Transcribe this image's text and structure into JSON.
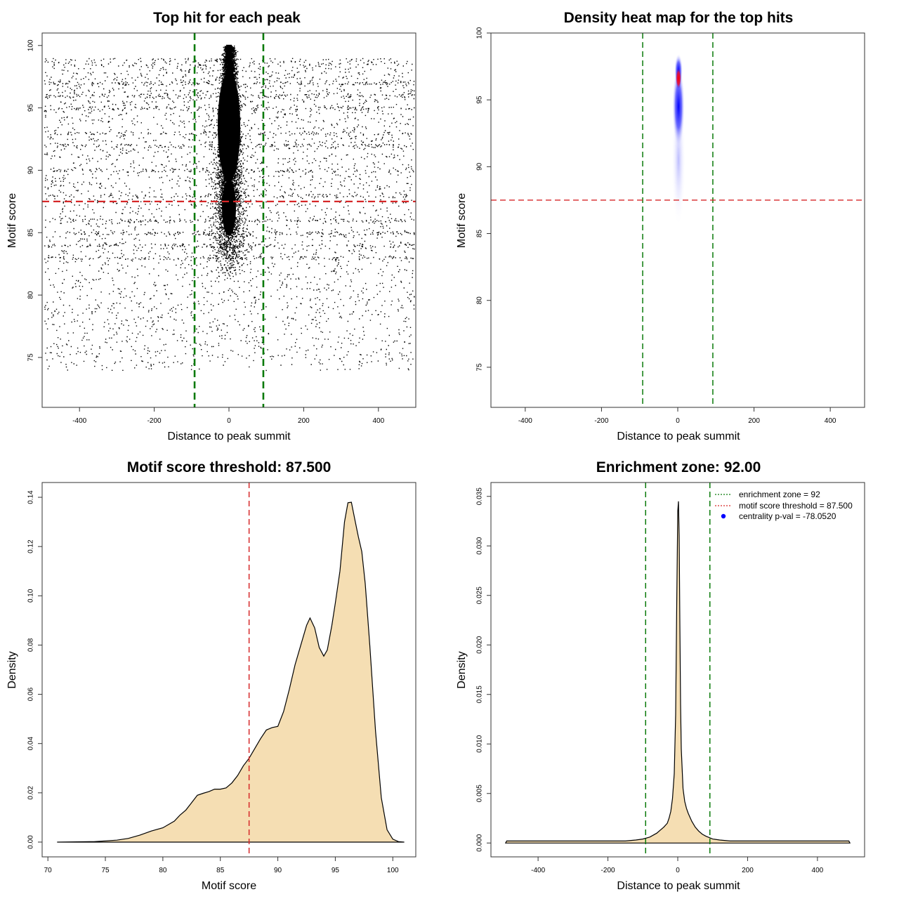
{
  "chart_data": [
    {
      "type": "scatter",
      "title": "Top hit for each peak",
      "xlabel": "Distance to peak summit",
      "ylabel": "Motif score",
      "xlim": [
        -500,
        500
      ],
      "ylim": [
        71,
        101
      ],
      "xticks": [
        "-400",
        "-200",
        "0",
        "200",
        "400"
      ],
      "yticks": [
        "75",
        "80",
        "85",
        "90",
        "95",
        "100"
      ],
      "vlines": [
        -92,
        92
      ],
      "hline": 87.5,
      "vline_color": "#0a7a0a",
      "hline_color": "#d62728",
      "point_color": "#000000",
      "description_series": {
        "background": {
          "x_range": [
            -495,
            495
          ],
          "y_range": [
            73.7,
            99
          ],
          "approx_points": 9000
        },
        "center": {
          "x_center": 0,
          "x_spread": 35,
          "y_range": [
            81.5,
            100
          ],
          "approx_points": 8000
        }
      }
    },
    {
      "type": "heatmap",
      "title": "Density heat map for the top hits",
      "xlabel": "Distance to peak summit",
      "ylabel": "Motif score",
      "xlim": [
        -490,
        490
      ],
      "ylim": [
        72,
        100
      ],
      "xticks": [
        "-400",
        "-200",
        "0",
        "200",
        "400"
      ],
      "yticks": [
        "75",
        "80",
        "85",
        "90",
        "95",
        "100"
      ],
      "vlines": [
        -92,
        92
      ],
      "hline": 87.5,
      "peak": {
        "x": 2,
        "y": 96.6
      },
      "colors": [
        "#ffffff",
        "#0000ff",
        "#ff0000"
      ]
    },
    {
      "type": "area",
      "title": "Motif score threshold: 87.500",
      "xlabel": "Motif score",
      "ylabel": "Density",
      "xlim": [
        69.5,
        102
      ],
      "ylim": [
        -0.006,
        0.146
      ],
      "xticks": [
        "70",
        "75",
        "80",
        "85",
        "90",
        "95",
        "100"
      ],
      "yticks": [
        "0.00",
        "0.02",
        "0.04",
        "0.06",
        "0.08",
        "0.10",
        "0.12",
        "0.14"
      ],
      "vline": 87.5,
      "fill": "#f5deb3",
      "x": [
        70.8,
        74,
        76,
        77,
        78,
        79,
        80,
        81,
        81.5,
        82,
        82.5,
        83,
        83.5,
        84,
        84.5,
        85,
        85.5,
        86,
        86.5,
        87,
        87.5,
        88,
        88.5,
        89,
        89.5,
        90,
        90.5,
        91,
        91.5,
        92,
        92.5,
        92.8,
        93.2,
        93.6,
        94,
        94.3,
        94.7,
        95,
        95.4,
        95.8,
        96.1,
        96.4,
        96.7,
        97,
        97.3,
        97.6,
        98,
        98.5,
        99,
        99.5,
        100,
        100.5,
        101
      ],
      "values": [
        0.0,
        0.0002,
        0.0008,
        0.0015,
        0.0028,
        0.0045,
        0.0058,
        0.0085,
        0.011,
        0.013,
        0.016,
        0.019,
        0.0198,
        0.0205,
        0.0215,
        0.0215,
        0.022,
        0.024,
        0.027,
        0.031,
        0.034,
        0.038,
        0.042,
        0.0455,
        0.0465,
        0.047,
        0.053,
        0.062,
        0.072,
        0.08,
        0.088,
        0.091,
        0.087,
        0.079,
        0.0755,
        0.078,
        0.088,
        0.097,
        0.11,
        0.13,
        0.1378,
        0.138,
        0.131,
        0.124,
        0.118,
        0.105,
        0.08,
        0.045,
        0.018,
        0.005,
        0.0012,
        0.0002,
        0.0
      ]
    },
    {
      "type": "area",
      "title": "Enrichment zone: 92.00",
      "xlabel": "Distance to peak summit",
      "ylabel": "Density",
      "xlim": [
        -535,
        535
      ],
      "ylim": [
        -0.0014,
        0.0364
      ],
      "xticks": [
        "-400",
        "-200",
        "0",
        "200",
        "400"
      ],
      "yticks": [
        "0.000",
        "0.005",
        "0.010",
        "0.015",
        "0.020",
        "0.025",
        "0.030",
        "0.035"
      ],
      "vlines": [
        -92,
        92
      ],
      "fill": "#f5deb3",
      "x": [
        -493,
        -490,
        -450,
        -400,
        -350,
        -300,
        -250,
        -200,
        -150,
        -120,
        -100,
        -80,
        -60,
        -50,
        -40,
        -30,
        -25,
        -20,
        -15,
        -10,
        -6,
        -3,
        0,
        2,
        4,
        6,
        8,
        10,
        15,
        20,
        25,
        30,
        40,
        50,
        60,
        70,
        80,
        100,
        120,
        150,
        200,
        250,
        300,
        350,
        400,
        450,
        490,
        493
      ],
      "values": [
        0.0,
        0.0002,
        0.0002,
        0.0002,
        0.0002,
        0.0002,
        0.0002,
        0.0002,
        0.0002,
        0.0003,
        0.0004,
        0.0006,
        0.001,
        0.0013,
        0.0016,
        0.002,
        0.0025,
        0.0032,
        0.0045,
        0.007,
        0.013,
        0.024,
        0.0335,
        0.0345,
        0.031,
        0.022,
        0.014,
        0.0095,
        0.0055,
        0.0042,
        0.0035,
        0.003,
        0.0022,
        0.0016,
        0.0012,
        0.0009,
        0.0007,
        0.0004,
        0.0003,
        0.0002,
        0.0002,
        0.0002,
        0.0002,
        0.0002,
        0.0002,
        0.0002,
        0.0002,
        0.0
      ],
      "legend": [
        {
          "label": "enrichment zone = 92",
          "color": "#0a7a0a",
          "kind": "dotted-line"
        },
        {
          "label": "motif score threshold = 87.500",
          "color": "#d62728",
          "kind": "dotted-line"
        },
        {
          "label": "centrality p-val = -78.0520",
          "color": "#0000ff",
          "kind": "point"
        }
      ]
    }
  ]
}
